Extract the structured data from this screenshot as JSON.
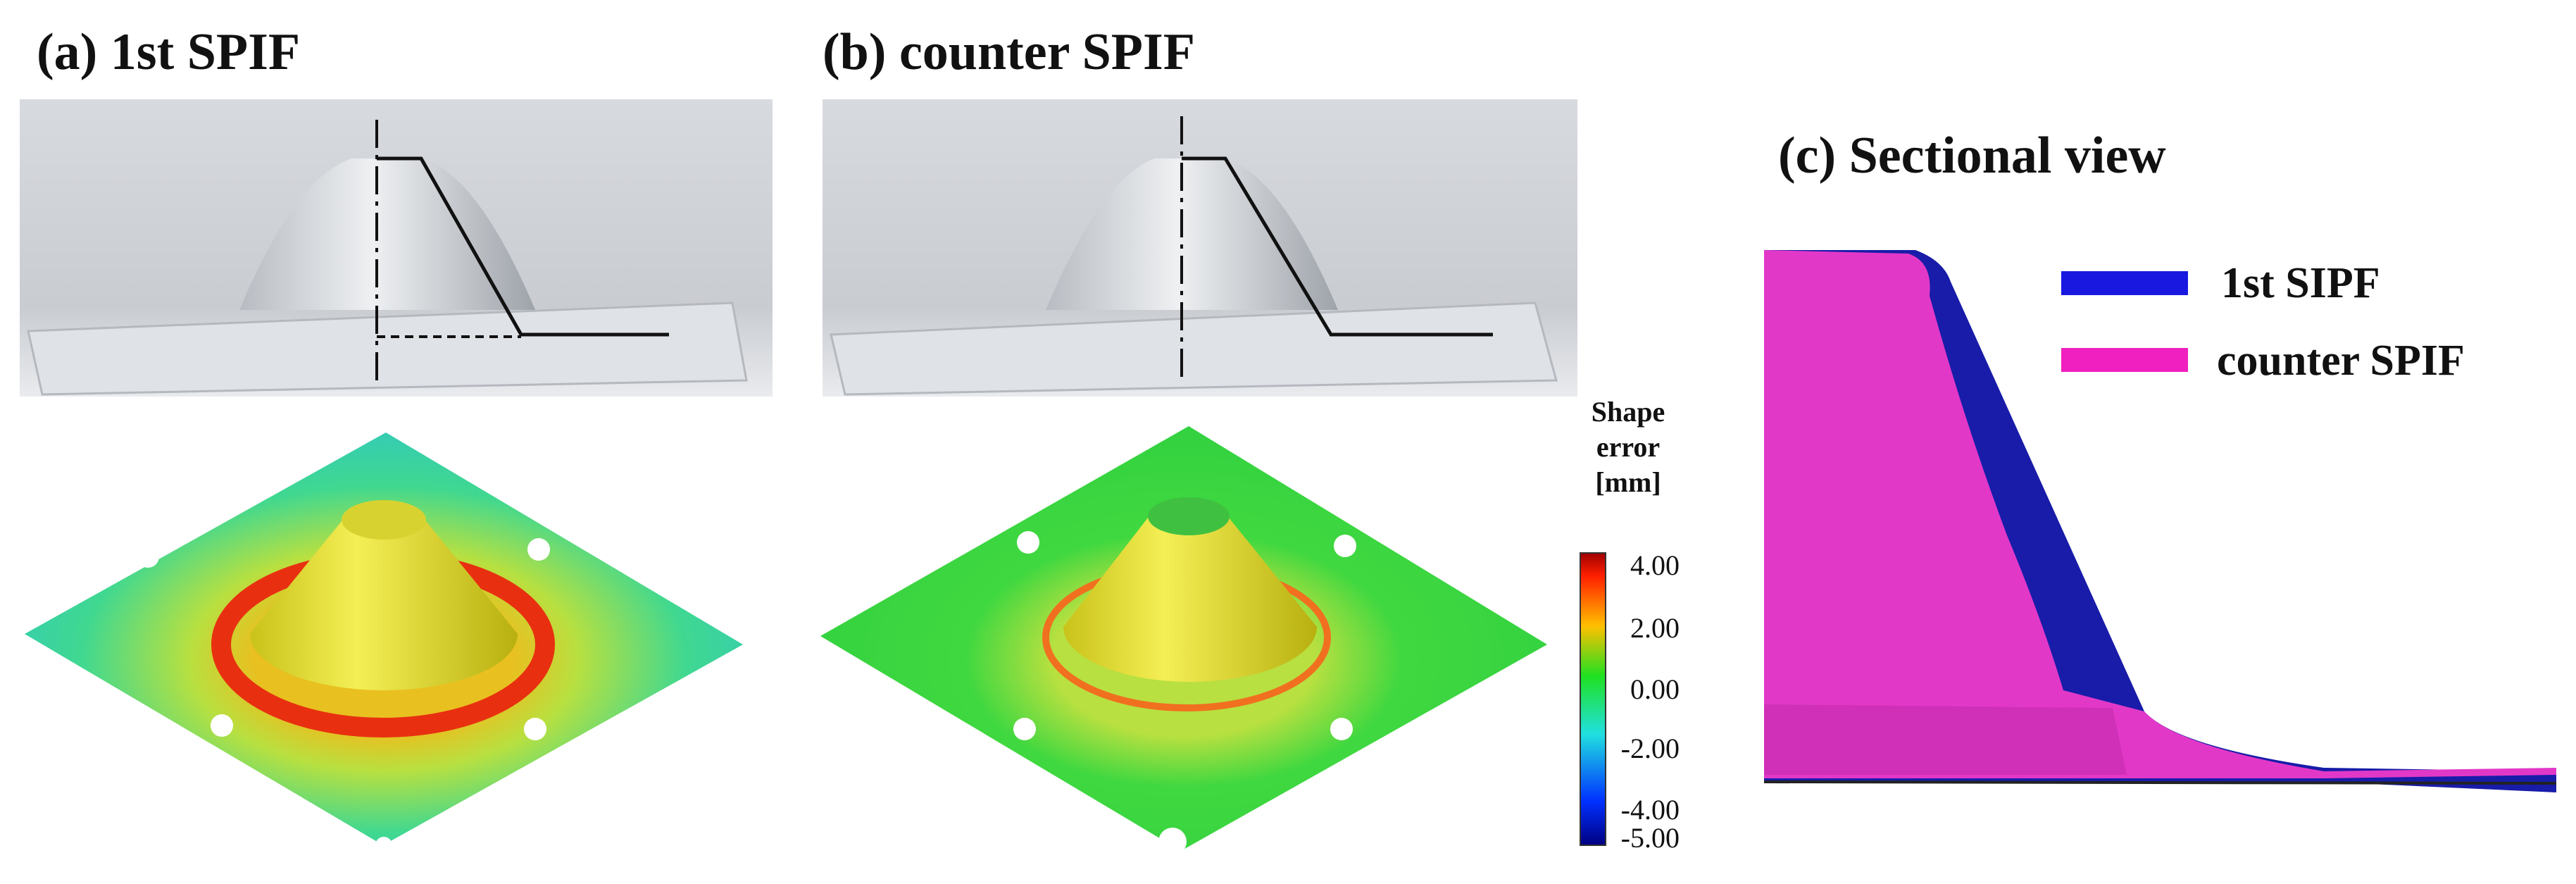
{
  "panels": [
    {
      "title": "(a) 1st SPIF"
    },
    {
      "title": "(b) counter SPIF"
    },
    {
      "title": "(c) Sectional view",
      "legend": [
        "1st SIPF",
        "counter SPIF"
      ]
    }
  ],
  "colorbar": {
    "title": [
      "Shape",
      "error",
      "[mm]"
    ],
    "ticks": [
      "4.00",
      "2.00",
      "0.00",
      "-2.00",
      "-4.00",
      "-5.00"
    ]
  }
}
